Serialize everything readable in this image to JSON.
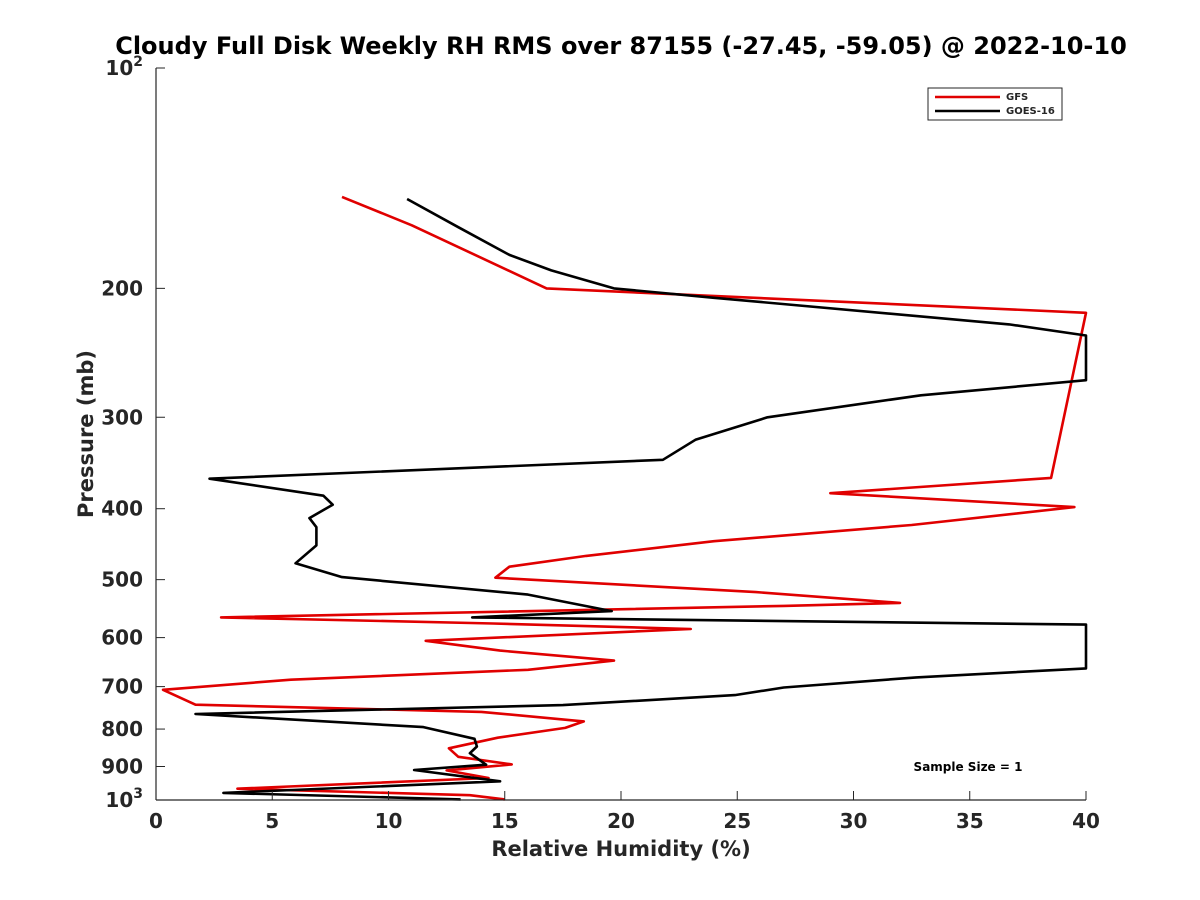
{
  "chart_data": {
    "type": "line",
    "title": "Cloudy Full Disk Weekly RH RMS over 87155 (-27.45, -59.05) @ 2022-10-10",
    "xlabel": "Relative Humidity (%)",
    "ylabel": "Pressure (mb)",
    "xlim": [
      0,
      40
    ],
    "ylim": [
      100,
      1000
    ],
    "y_scale": "log",
    "y_reversed": true,
    "x_ticks": [
      "0",
      "5",
      "10",
      "15",
      "20",
      "25",
      "30",
      "35",
      "40"
    ],
    "y_ticks": [
      {
        "value": 100,
        "base": "10",
        "exp": "2"
      },
      {
        "value": 200,
        "label": "200"
      },
      {
        "value": 300,
        "label": "300"
      },
      {
        "value": 400,
        "label": "400"
      },
      {
        "value": 500,
        "label": "500"
      },
      {
        "value": 600,
        "label": "600"
      },
      {
        "value": 700,
        "label": "700"
      },
      {
        "value": 800,
        "label": "800"
      },
      {
        "value": 900,
        "label": "900"
      },
      {
        "value": 1000,
        "base": "10",
        "exp": "3"
      }
    ],
    "legend_position": "top-right",
    "annotation": "Sample Size = 1",
    "series": [
      {
        "name": "GFS",
        "color": "#e00000",
        "points": [
          [
            8.0,
            150
          ],
          [
            11.0,
            164
          ],
          [
            16.8,
            200
          ],
          [
            40,
            216
          ],
          [
            38.5,
            363
          ],
          [
            29.0,
            381
          ],
          [
            39.5,
            398
          ],
          [
            32.5,
            421
          ],
          [
            24.0,
            443
          ],
          [
            18.5,
            464
          ],
          [
            15.2,
            480
          ],
          [
            14.6,
            497
          ],
          [
            25.8,
            520
          ],
          [
            32.0,
            538
          ],
          [
            27.0,
            543
          ],
          [
            2.8,
            563
          ],
          [
            14.5,
            574
          ],
          [
            23.0,
            584
          ],
          [
            11.6,
            606
          ],
          [
            14.8,
            625
          ],
          [
            19.7,
            645
          ],
          [
            16.0,
            664
          ],
          [
            5.8,
            685
          ],
          [
            0.3,
            707
          ],
          [
            1.7,
            741
          ],
          [
            14.0,
            758
          ],
          [
            18.4,
            781
          ],
          [
            17.6,
            797
          ],
          [
            14.7,
            822
          ],
          [
            12.6,
            850
          ],
          [
            13.0,
            873
          ],
          [
            15.3,
            894
          ],
          [
            12.5,
            911
          ],
          [
            14.3,
            933
          ],
          [
            3.5,
            965
          ],
          [
            13.5,
            985
          ],
          [
            15.0,
            998
          ]
        ]
      },
      {
        "name": "GOES-16",
        "color": "#000000",
        "points": [
          [
            10.8,
            151
          ],
          [
            13.0,
            165
          ],
          [
            15.2,
            180
          ],
          [
            17.0,
            189
          ],
          [
            19.7,
            200
          ],
          [
            24.0,
            206
          ],
          [
            36.7,
            224
          ],
          [
            40,
            232
          ],
          [
            40,
            267
          ],
          [
            32.9,
            280
          ],
          [
            26.3,
            300
          ],
          [
            23.2,
            322
          ],
          [
            21.8,
            343
          ],
          [
            2.3,
            364
          ],
          [
            7.2,
            384
          ],
          [
            7.6,
            395
          ],
          [
            6.6,
            412
          ],
          [
            6.9,
            424
          ],
          [
            6.9,
            449
          ],
          [
            6.0,
            475
          ],
          [
            8.0,
            496
          ],
          [
            16.0,
            524
          ],
          [
            19.6,
            552
          ],
          [
            13.6,
            563
          ],
          [
            40,
            576
          ],
          [
            40,
            661
          ],
          [
            32.7,
            680
          ],
          [
            27.0,
            702
          ],
          [
            24.9,
            719
          ],
          [
            17.5,
            742
          ],
          [
            1.7,
            763
          ],
          [
            11.5,
            795
          ],
          [
            13.7,
            825
          ],
          [
            13.8,
            845
          ],
          [
            13.5,
            863
          ],
          [
            14.2,
            895
          ],
          [
            11.1,
            910
          ],
          [
            14.8,
            943
          ],
          [
            2.9,
            978
          ],
          [
            13.1,
            998
          ]
        ]
      }
    ]
  }
}
